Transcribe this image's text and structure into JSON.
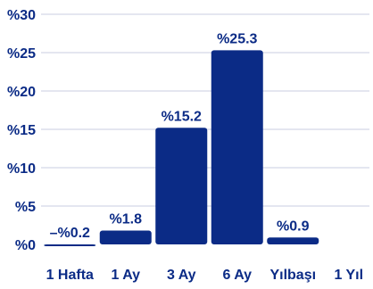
{
  "chart_data": {
    "type": "bar",
    "title": "",
    "xlabel": "",
    "ylabel": "",
    "categories": [
      "1 Hafta",
      "1 Ay",
      "3 Ay",
      "6 Ay",
      "Yılbaşı",
      "1 Yıl"
    ],
    "values": [
      -0.2,
      1.8,
      15.2,
      25.3,
      0.9,
      null
    ],
    "data_labels": [
      "–%0.2",
      "%1.8",
      "%15.2",
      "%25.3",
      "%0.9",
      ""
    ],
    "ylim": [
      0,
      30
    ],
    "yticks": [
      0,
      5,
      10,
      15,
      20,
      25,
      30
    ],
    "ytick_labels": [
      "%0",
      "%5",
      "%10",
      "%15",
      "%20",
      "%25",
      "%30"
    ],
    "grid": true,
    "legend": "none"
  },
  "colors": {
    "bar": "#0b2b86",
    "text": "#0b2b86",
    "grid": "#c9cce0"
  }
}
